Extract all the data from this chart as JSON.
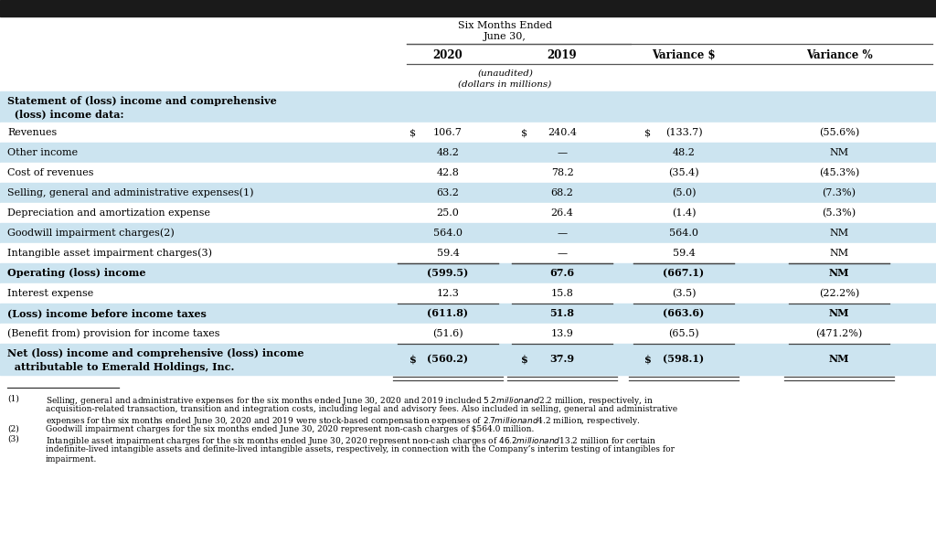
{
  "title_bar_color": "#1a1a1a",
  "bg_light": "#cce4f0",
  "bg_white": "#ffffff",
  "col_headers": [
    "2020",
    "2019",
    "Variance $",
    "Variance %"
  ],
  "rows": [
    {
      "label": "Statement of (loss) income and comprehensive\n  (loss) income data:",
      "bold": true,
      "values": [
        "",
        "",
        "",
        ""
      ],
      "dollar_signs": [
        false,
        false,
        false,
        false
      ],
      "bg": "#cce4f0",
      "row_type": "header_section"
    },
    {
      "label": "Revenues",
      "bold": false,
      "values": [
        "106.7",
        "240.4",
        "(133.7)",
        "(55.6%)"
      ],
      "dollar_signs": [
        true,
        true,
        true,
        false
      ],
      "bg": "#ffffff",
      "row_type": "normal"
    },
    {
      "label": "Other income",
      "bold": false,
      "values": [
        "48.2",
        "—",
        "48.2",
        "NM"
      ],
      "dollar_signs": [
        false,
        false,
        false,
        false
      ],
      "bg": "#cce4f0",
      "row_type": "normal"
    },
    {
      "label": "Cost of revenues",
      "bold": false,
      "values": [
        "42.8",
        "78.2",
        "(35.4)",
        "(45.3%)"
      ],
      "dollar_signs": [
        false,
        false,
        false,
        false
      ],
      "bg": "#ffffff",
      "row_type": "normal"
    },
    {
      "label": "Selling, general and administrative expenses(1)",
      "bold": false,
      "values": [
        "63.2",
        "68.2",
        "(5.0)",
        "(7.3%)"
      ],
      "dollar_signs": [
        false,
        false,
        false,
        false
      ],
      "bg": "#cce4f0",
      "row_type": "normal"
    },
    {
      "label": "Depreciation and amortization expense",
      "bold": false,
      "values": [
        "25.0",
        "26.4",
        "(1.4)",
        "(5.3%)"
      ],
      "dollar_signs": [
        false,
        false,
        false,
        false
      ],
      "bg": "#ffffff",
      "row_type": "normal"
    },
    {
      "label": "Goodwill impairment charges(2)",
      "bold": false,
      "values": [
        "564.0",
        "—",
        "564.0",
        "NM"
      ],
      "dollar_signs": [
        false,
        false,
        false,
        false
      ],
      "bg": "#cce4f0",
      "row_type": "normal"
    },
    {
      "label": "Intangible asset impairment charges(3)",
      "bold": false,
      "values": [
        "59.4",
        "—",
        "59.4",
        "NM"
      ],
      "dollar_signs": [
        false,
        false,
        false,
        false
      ],
      "bg": "#ffffff",
      "row_type": "normal",
      "line_below": true
    },
    {
      "label": "Operating (loss) income",
      "bold": true,
      "values": [
        "(599.5)",
        "67.6",
        "(667.1)",
        "NM"
      ],
      "dollar_signs": [
        false,
        false,
        false,
        false
      ],
      "bg": "#cce4f0",
      "row_type": "normal"
    },
    {
      "label": "Interest expense",
      "bold": false,
      "values": [
        "12.3",
        "15.8",
        "(3.5)",
        "(22.2%)"
      ],
      "dollar_signs": [
        false,
        false,
        false,
        false
      ],
      "bg": "#ffffff",
      "row_type": "normal",
      "line_below": true
    },
    {
      "label": "(Loss) income before income taxes",
      "bold": true,
      "values": [
        "(611.8)",
        "51.8",
        "(663.6)",
        "NM"
      ],
      "dollar_signs": [
        false,
        false,
        false,
        false
      ],
      "bg": "#cce4f0",
      "row_type": "normal"
    },
    {
      "label": "(Benefit from) provision for income taxes",
      "bold": false,
      "values": [
        "(51.6)",
        "13.9",
        "(65.5)",
        "(471.2%)"
      ],
      "dollar_signs": [
        false,
        false,
        false,
        false
      ],
      "bg": "#ffffff",
      "row_type": "normal",
      "line_below": true
    },
    {
      "label": "Net (loss) income and comprehensive (loss) income\n  attributable to Emerald Holdings, Inc.",
      "bold": true,
      "values": [
        "(560.2)",
        "37.9",
        "(598.1)",
        "NM"
      ],
      "dollar_signs": [
        true,
        true,
        true,
        false
      ],
      "bg": "#cce4f0",
      "row_type": "normal",
      "double_line": true
    }
  ],
  "footnote1": "Selling, general and administrative expenses for the six months ended June 30, 2020 and 2019 included $5.2 million and $2.2 million, respectively, in",
  "footnote1b": "acquisition-related transaction, transition and integration costs, including legal and advisory fees. Also included in selling, general and administrative",
  "footnote1c": "expenses for the six months ended June 30, 2020 and 2019 were stock-based compensation expenses of $2.7 million and $4.2 million, respectively.",
  "footnote2": "Goodwill impairment charges for the six months ended June 30, 2020 represent non-cash charges of $564.0 million.",
  "footnote3": "Intangible asset impairment charges for the six months ended June 30, 2020 represent non-cash charges of $46.2 million and $13.2 million for certain",
  "footnote3b": "indefinite-lived intangible assets and definite-lived intangible assets, respectively, in connection with the Company’s interim testing of intangibles for",
  "footnote3c": "impairment."
}
